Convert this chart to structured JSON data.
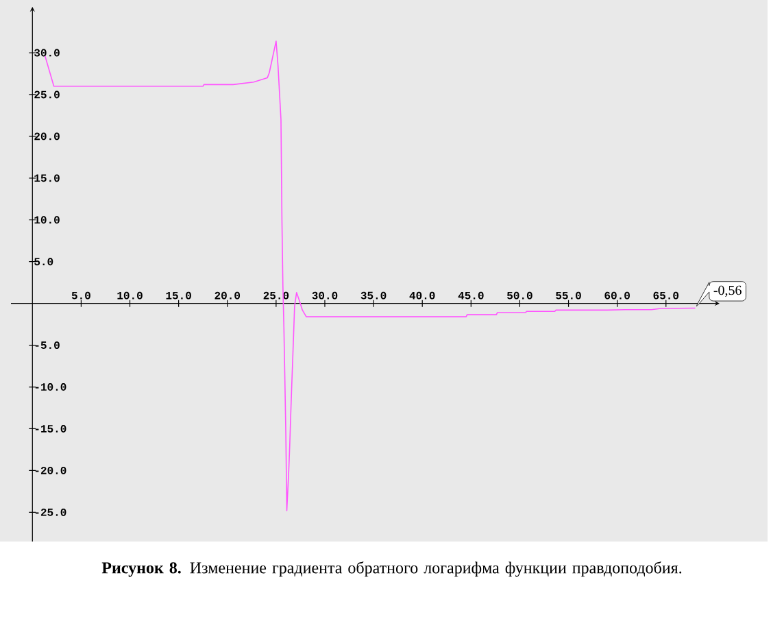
{
  "chart_data": {
    "type": "line",
    "x": [
      1.3,
      2.2,
      10,
      17.5,
      17.6,
      20.6,
      22.7,
      24.1,
      24.3,
      25.0,
      25.2,
      25.5,
      25.6,
      25.7,
      25.8,
      25.9,
      26.0,
      26.1,
      26.3,
      26.4,
      26.5,
      26.6,
      26.7,
      26.8,
      26.9,
      27.1,
      27.4,
      27.7,
      28.1,
      35,
      44.5,
      44.6,
      47.6,
      47.7,
      50.6,
      50.7,
      53.6,
      53.7,
      59.0,
      60.8,
      63.5,
      64.5,
      68.0
    ],
    "series": [
      {
        "color": "#ff55ff",
        "values": [
          29.6,
          26.0,
          26.0,
          26.0,
          26.2,
          26.2,
          26.5,
          27.0,
          27.6,
          31.4,
          28.4,
          22.0,
          10.0,
          2.0,
          -2.8,
          -9.1,
          -15.6,
          -24.8,
          -20.0,
          -17.0,
          -13.4,
          -10.0,
          -6.9,
          -3.6,
          -0.3,
          1.3,
          0.3,
          -0.8,
          -1.6,
          -1.6,
          -1.6,
          -1.35,
          -1.35,
          -1.1,
          -1.1,
          -0.95,
          -0.95,
          -0.8,
          -0.8,
          -0.75,
          -0.75,
          -0.6,
          -0.56
        ]
      }
    ],
    "xlim": [
      -2.2,
      70.5
    ],
    "ylim": [
      -28.5,
      35.5
    ],
    "xticks": [
      {
        "value": 5,
        "label": "5.0"
      },
      {
        "value": 10,
        "label": "10.0"
      },
      {
        "value": 15,
        "label": "15.0"
      },
      {
        "value": 20,
        "label": "20.0"
      },
      {
        "value": 25,
        "label": "25.0"
      },
      {
        "value": 30,
        "label": "30.0"
      },
      {
        "value": 35,
        "label": "35.0"
      },
      {
        "value": 40,
        "label": "40.0"
      },
      {
        "value": 45,
        "label": "45.0"
      },
      {
        "value": 50,
        "label": "50.0"
      },
      {
        "value": 55,
        "label": "55.0"
      },
      {
        "value": 60,
        "label": "60.0"
      },
      {
        "value": 65,
        "label": "65.0"
      }
    ],
    "yticks": [
      {
        "value": 30,
        "label": "30.0"
      },
      {
        "value": 25,
        "label": "25.0"
      },
      {
        "value": 20,
        "label": "20.0"
      },
      {
        "value": 15,
        "label": "15.0"
      },
      {
        "value": 10,
        "label": "10.0"
      },
      {
        "value": 5,
        "label": "5.0"
      },
      {
        "value": -5,
        "label": "-5.0"
      },
      {
        "value": -10,
        "label": "-10.0"
      },
      {
        "value": -15,
        "label": "-15.0"
      },
      {
        "value": -20,
        "label": "-20.0"
      },
      {
        "value": -25,
        "label": "-25.0"
      }
    ],
    "annotations": [
      {
        "text": "-0,56",
        "x": 68.0,
        "y": -0.56
      },
      "**Рисунок 8.** Изменение градиента обратного логарифма функции правдоподобия."
    ]
  }
}
